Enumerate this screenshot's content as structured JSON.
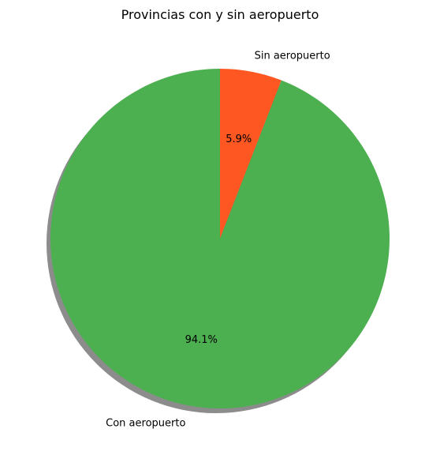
{
  "chart_data": {
    "type": "pie",
    "title": "Provincias con y sin aeropuerto",
    "slices": [
      {
        "label": "Sin aeropuerto",
        "value": 5.9,
        "pct_label": "5.9%",
        "color": "#FF5722"
      },
      {
        "label": "Con aeropuerto",
        "value": 94.1,
        "pct_label": "94.1%",
        "color": "#4CAF50"
      }
    ],
    "start_angle_deg": 90,
    "direction": "clockwise",
    "shadow": true
  }
}
